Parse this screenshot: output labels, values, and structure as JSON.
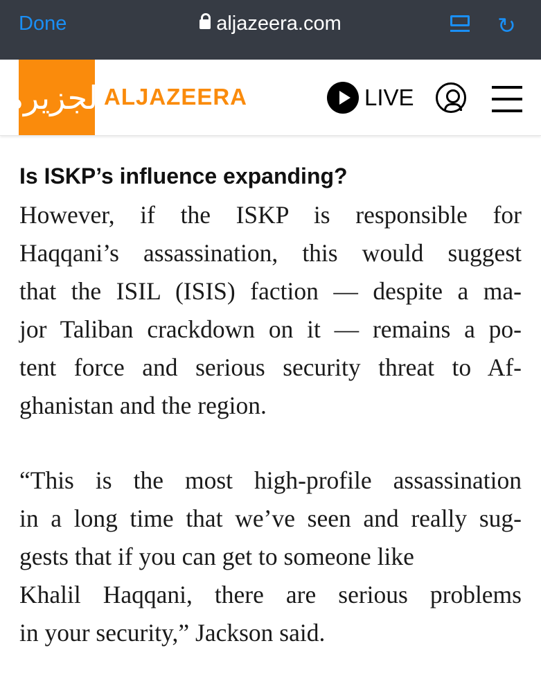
{
  "browser": {
    "done_label": "Done",
    "url": "aljazeera.com",
    "icons": [
      "lock-icon",
      "reader-view-icon",
      "reload-icon"
    ],
    "accent": "#1a8ff5"
  },
  "header": {
    "brand": "ALJAZEERA",
    "logo_script": "الجزيرة",
    "live_label": "LIVE",
    "brand_color": "#fa8b0c",
    "icons": [
      "play-icon",
      "user-icon",
      "menu-icon"
    ]
  },
  "article": {
    "heading": "Is ISKP’s influence expanding?",
    "paragraphs": [
      {
        "lines": [
          "However, if the ISKP is responsible for",
          "Haqqani’s assassination, this would suggest",
          "that the ISIL (ISIS) faction — despite a ma-",
          "jor Taliban crackdown on it — remains a po-",
          "tent force and serious security threat to Af-",
          "ghanistan and the region."
        ]
      },
      {
        "lines": [
          "“This is the most high-profile assassination",
          "in a long time that we’ve seen and really sug-",
          "gests that if you can get to someone like",
          "Khalil Haqqani, there are serious problems",
          "in your security,” Jackson said."
        ]
      }
    ]
  }
}
